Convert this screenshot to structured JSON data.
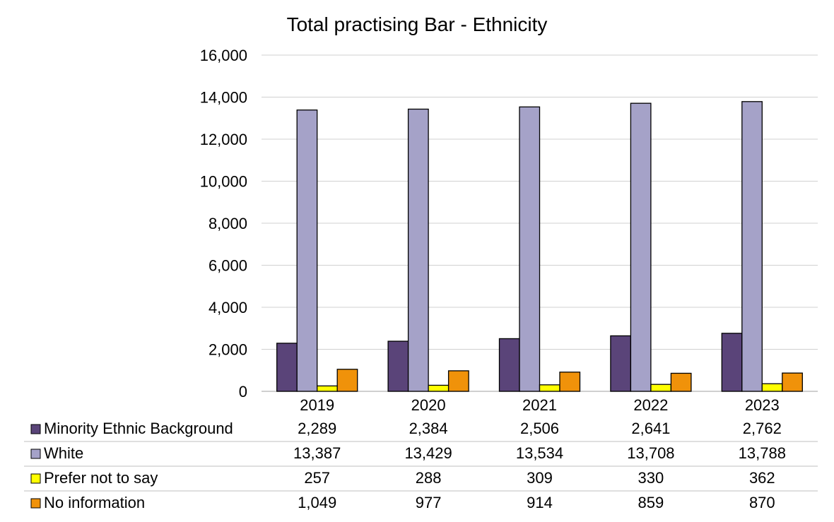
{
  "chart_data": {
    "type": "bar",
    "title": "Total practising Bar - Ethnicity",
    "categories": [
      "2019",
      "2020",
      "2021",
      "2022",
      "2023"
    ],
    "series": [
      {
        "name": "Minority Ethnic Background",
        "color": "#5a4479",
        "values": [
          2289,
          2384,
          2506,
          2641,
          2762
        ],
        "labels": [
          "2,289",
          "2,384",
          "2,506",
          "2,641",
          "2,762"
        ]
      },
      {
        "name": "White",
        "color": "#a5a2c8",
        "values": [
          13387,
          13429,
          13534,
          13708,
          13788
        ],
        "labels": [
          "13,387",
          "13,429",
          "13,534",
          "13,708",
          "13,788"
        ]
      },
      {
        "name": "Prefer not to say",
        "color": "#ffff00",
        "values": [
          257,
          288,
          309,
          330,
          362
        ],
        "labels": [
          "257",
          "288",
          "309",
          "330",
          "362"
        ]
      },
      {
        "name": "No information",
        "color": "#f0920a",
        "values": [
          1049,
          977,
          914,
          859,
          870
        ],
        "labels": [
          "1,049",
          "977",
          "914",
          "859",
          "870"
        ]
      }
    ],
    "ylim": [
      0,
      16000
    ],
    "y_ticks": [
      0,
      2000,
      4000,
      6000,
      8000,
      10000,
      12000,
      14000,
      16000
    ],
    "y_tick_labels": [
      "0",
      "2,000",
      "4,000",
      "6,000",
      "8,000",
      "10,000",
      "12,000",
      "14,000",
      "16,000"
    ],
    "grid": true,
    "legend": "data table below chart",
    "xlabel": "",
    "ylabel": ""
  }
}
